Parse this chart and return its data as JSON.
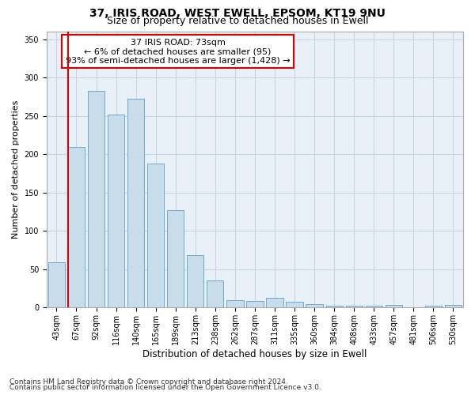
{
  "title1": "37, IRIS ROAD, WEST EWELL, EPSOM, KT19 9NU",
  "title2": "Size of property relative to detached houses in Ewell",
  "xlabel": "Distribution of detached houses by size in Ewell",
  "ylabel": "Number of detached properties",
  "categories": [
    "43sqm",
    "67sqm",
    "92sqm",
    "116sqm",
    "140sqm",
    "165sqm",
    "189sqm",
    "213sqm",
    "238sqm",
    "262sqm",
    "287sqm",
    "311sqm",
    "335sqm",
    "360sqm",
    "384sqm",
    "408sqm",
    "433sqm",
    "457sqm",
    "481sqm",
    "506sqm",
    "530sqm"
  ],
  "values": [
    59,
    210,
    283,
    252,
    272,
    188,
    127,
    68,
    35,
    10,
    9,
    13,
    8,
    5,
    3,
    2,
    2,
    4,
    0,
    2,
    4
  ],
  "bar_color": "#c9dcea",
  "bar_edge_color": "#6aaad4",
  "highlight_bar_index": 1,
  "highlight_color": "#dd0000",
  "annotation_text": "37 IRIS ROAD: 73sqm\n← 6% of detached houses are smaller (95)\n93% of semi-detached houses are larger (1,428) →",
  "annotation_box_color": "#ffffff",
  "annotation_box_edge_color": "#dd0000",
  "ylim": [
    0,
    360
  ],
  "yticks": [
    0,
    50,
    100,
    150,
    200,
    250,
    300,
    350
  ],
  "grid_color": "#c8d4e4",
  "bg_color": "#eaf0f8",
  "footer1": "Contains HM Land Registry data © Crown copyright and database right 2024.",
  "footer2": "Contains public sector information licensed under the Open Government Licence v3.0.",
  "title1_fontsize": 10,
  "title2_fontsize": 9,
  "xlabel_fontsize": 8.5,
  "ylabel_fontsize": 8,
  "tick_fontsize": 7,
  "annotation_fontsize": 8,
  "footer_fontsize": 6.5
}
